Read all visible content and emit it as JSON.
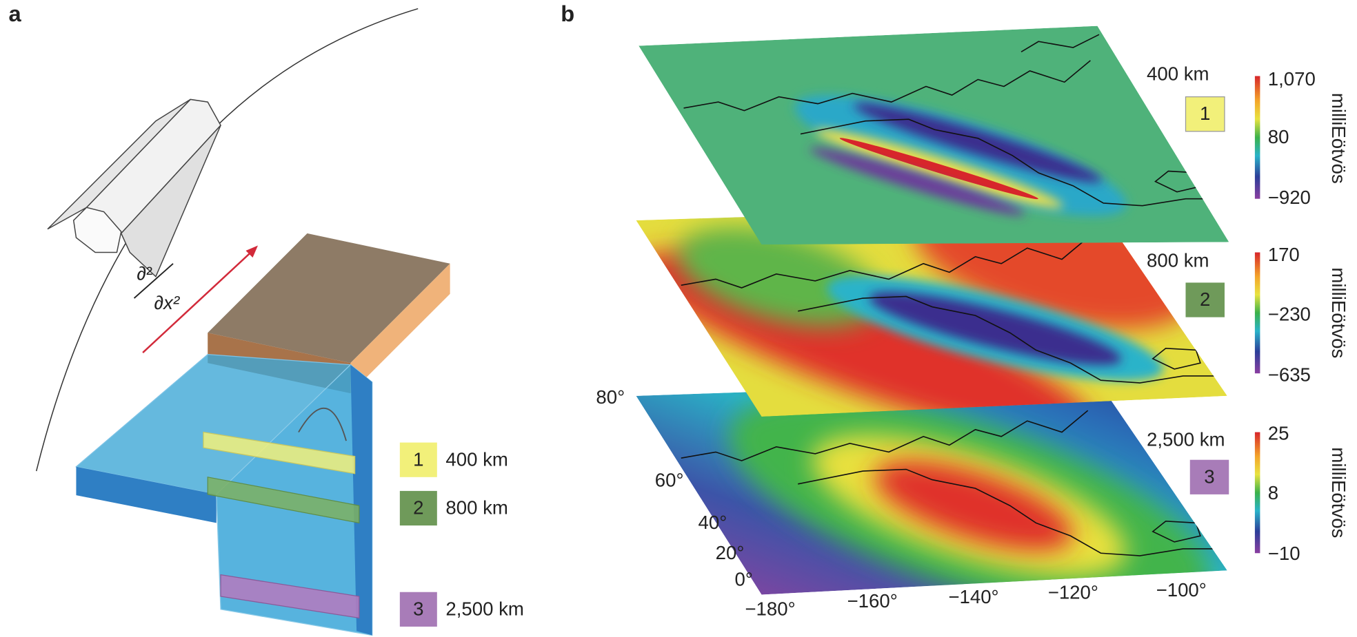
{
  "panel_a": {
    "label": "a",
    "operator": {
      "numerator": "∂²",
      "denominator": "∂x²"
    },
    "legend": [
      {
        "number": "1",
        "depth": "400 km"
      },
      {
        "number": "2",
        "depth": "800 km"
      },
      {
        "number": "3",
        "depth": "2,500 km"
      }
    ]
  },
  "panel_b": {
    "label": "b",
    "layers": [
      {
        "depth": "400 km",
        "number": "1",
        "colorbar_ticks": [
          "1,070",
          "80",
          "−920"
        ],
        "unit": "milliEötvös"
      },
      {
        "depth": "800 km",
        "number": "2",
        "colorbar_ticks": [
          "170",
          "−230",
          "−635"
        ],
        "unit": "milliEötvös"
      },
      {
        "depth": "2,500 km",
        "number": "3",
        "colorbar_ticks": [
          "25",
          "8",
          "−10"
        ],
        "unit": "milliEötvös"
      }
    ],
    "latitude_labels": [
      "80°",
      "60°",
      "40°",
      "20°",
      "0°"
    ],
    "longitude_labels": [
      "−180°",
      "−160°",
      "−140°",
      "−120°",
      "−100°"
    ]
  }
}
